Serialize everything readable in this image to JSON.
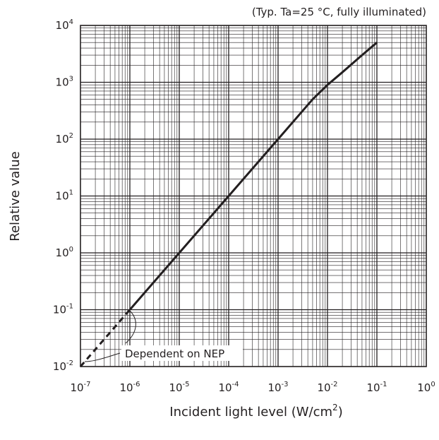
{
  "chart_data": {
    "type": "line",
    "title": "",
    "condition_note": "(Typ. Ta=25 °C, fully illuminated)",
    "xlabel": {
      "text": "Incident light level (W/cm",
      "sup": "2",
      "suffix": ")"
    },
    "ylabel": "Relative value",
    "x_scale": "log",
    "y_scale": "log",
    "xlim": [
      1e-07,
      1
    ],
    "ylim": [
      0.01,
      10000
    ],
    "grid": true,
    "x_ticks": [
      {
        "base": "10",
        "exp": "-7"
      },
      {
        "base": "10",
        "exp": "-6"
      },
      {
        "base": "10",
        "exp": "-5"
      },
      {
        "base": "10",
        "exp": "-4"
      },
      {
        "base": "10",
        "exp": "-3"
      },
      {
        "base": "10",
        "exp": "-2"
      },
      {
        "base": "10",
        "exp": "-1"
      },
      {
        "base": "10",
        "exp": "0"
      }
    ],
    "y_ticks": [
      {
        "base": "10",
        "exp": "-2"
      },
      {
        "base": "10",
        "exp": "-1"
      },
      {
        "base": "10",
        "exp": "0"
      },
      {
        "base": "10",
        "exp": "1"
      },
      {
        "base": "10",
        "exp": "2"
      },
      {
        "base": "10",
        "exp": "3"
      },
      {
        "base": "10",
        "exp": "4"
      }
    ],
    "series": [
      {
        "style": "solid",
        "x": [
          1e-06,
          1e-05,
          0.0001,
          0.001,
          0.005,
          0.01,
          0.02,
          0.05,
          0.1
        ],
        "y": [
          0.1,
          1,
          10,
          100,
          500,
          900,
          1500,
          3000,
          5000
        ]
      },
      {
        "style": "dashed",
        "x": [
          1e-07,
          1e-06
        ],
        "y": [
          0.01,
          0.1
        ]
      }
    ],
    "annotations": [
      {
        "text": "Dependent on NEP"
      }
    ],
    "colors": {
      "line": "#231f20",
      "grid": "#231f20",
      "background": "#ffffff"
    }
  }
}
